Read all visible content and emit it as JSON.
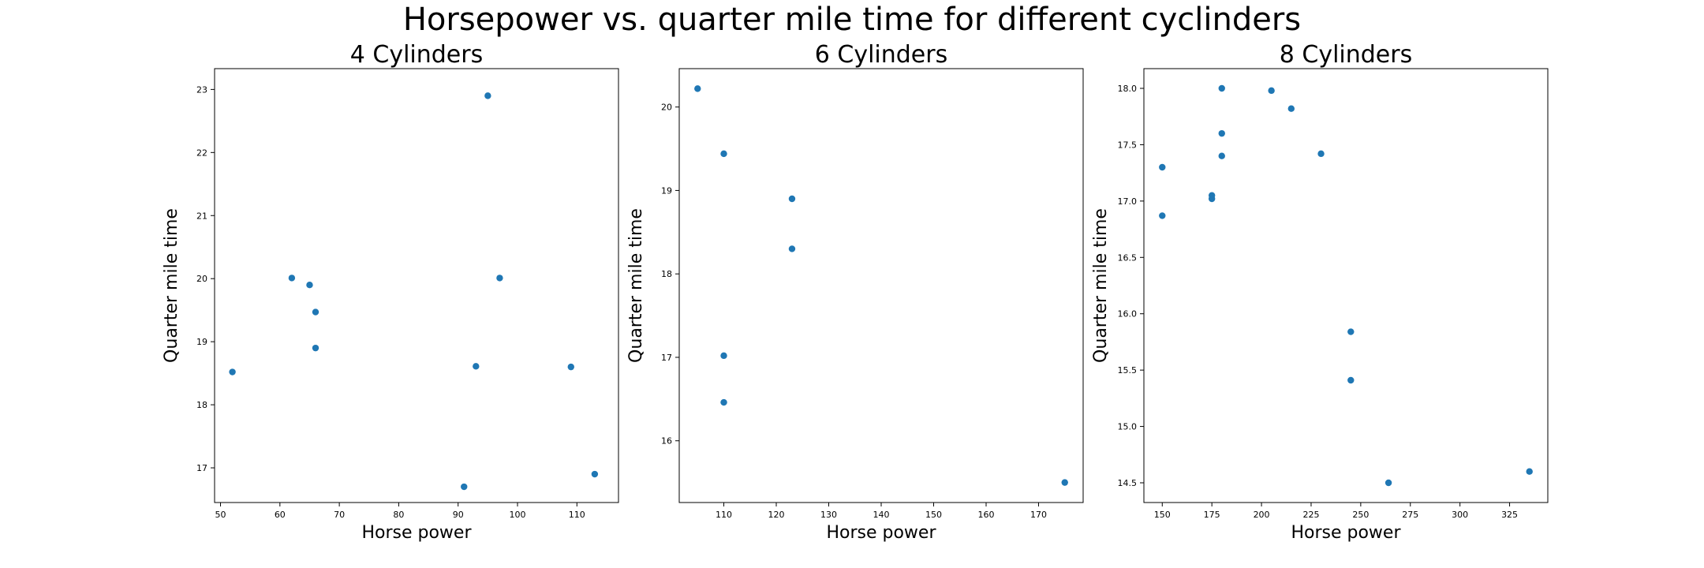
{
  "title": "Horsepower vs. quarter mile time for different cyclinders",
  "colors": {
    "point": "#1f77b4"
  },
  "chart_data": [
    {
      "type": "scatter",
      "title": "4 Cylinders",
      "xlabel": "Horse power",
      "ylabel": "Quarter mile time",
      "xlim": [
        49,
        117
      ],
      "ylim": [
        16.45,
        23.33
      ],
      "xticks": [
        50,
        60,
        70,
        80,
        90,
        100,
        110
      ],
      "yticks": [
        17,
        18,
        19,
        20,
        21,
        22,
        23
      ],
      "grid": false,
      "points": [
        {
          "x": 52,
          "y": 18.52
        },
        {
          "x": 62,
          "y": 20.01
        },
        {
          "x": 65,
          "y": 19.9
        },
        {
          "x": 66,
          "y": 19.47
        },
        {
          "x": 66,
          "y": 18.9
        },
        {
          "x": 91,
          "y": 16.7
        },
        {
          "x": 93,
          "y": 18.61
        },
        {
          "x": 95,
          "y": 22.9
        },
        {
          "x": 97,
          "y": 20.01
        },
        {
          "x": 109,
          "y": 18.6
        },
        {
          "x": 113,
          "y": 16.9
        }
      ]
    },
    {
      "type": "scatter",
      "title": "6 Cylinders",
      "xlabel": "Horse power",
      "ylabel": "Quarter mile time",
      "xlim": [
        101.5,
        178.5
      ],
      "ylim": [
        15.26,
        20.46
      ],
      "xticks": [
        110,
        120,
        130,
        140,
        150,
        160,
        170
      ],
      "yticks": [
        16,
        17,
        18,
        19,
        20
      ],
      "grid": false,
      "points": [
        {
          "x": 105,
          "y": 20.22
        },
        {
          "x": 110,
          "y": 19.44
        },
        {
          "x": 123,
          "y": 18.9
        },
        {
          "x": 123,
          "y": 18.3
        },
        {
          "x": 110,
          "y": 17.02
        },
        {
          "x": 110,
          "y": 16.46
        },
        {
          "x": 175,
          "y": 15.5
        }
      ]
    },
    {
      "type": "scatter",
      "title": "8 Cylinders",
      "xlabel": "Horse power",
      "ylabel": "Quarter mile time",
      "xlim": [
        140.75,
        344.25
      ],
      "ylim": [
        14.325,
        18.175
      ],
      "xticks": [
        150,
        175,
        200,
        225,
        250,
        275,
        300,
        325
      ],
      "yticks": [
        14.5,
        15.0,
        15.5,
        16.0,
        16.5,
        17.0,
        17.5,
        18.0
      ],
      "ytick_labels": [
        "14.5",
        "15.0",
        "15.5",
        "16.0",
        "16.5",
        "17.0",
        "17.5",
        "18.0"
      ],
      "grid": false,
      "points": [
        {
          "x": 180,
          "y": 18.0
        },
        {
          "x": 205,
          "y": 17.98
        },
        {
          "x": 215,
          "y": 17.82
        },
        {
          "x": 180,
          "y": 17.6
        },
        {
          "x": 230,
          "y": 17.42
        },
        {
          "x": 180,
          "y": 17.4
        },
        {
          "x": 150,
          "y": 17.3
        },
        {
          "x": 175,
          "y": 17.05
        },
        {
          "x": 175,
          "y": 17.02
        },
        {
          "x": 150,
          "y": 16.87
        },
        {
          "x": 245,
          "y": 15.84
        },
        {
          "x": 245,
          "y": 15.41
        },
        {
          "x": 264,
          "y": 14.5
        },
        {
          "x": 335,
          "y": 14.6
        }
      ]
    }
  ]
}
